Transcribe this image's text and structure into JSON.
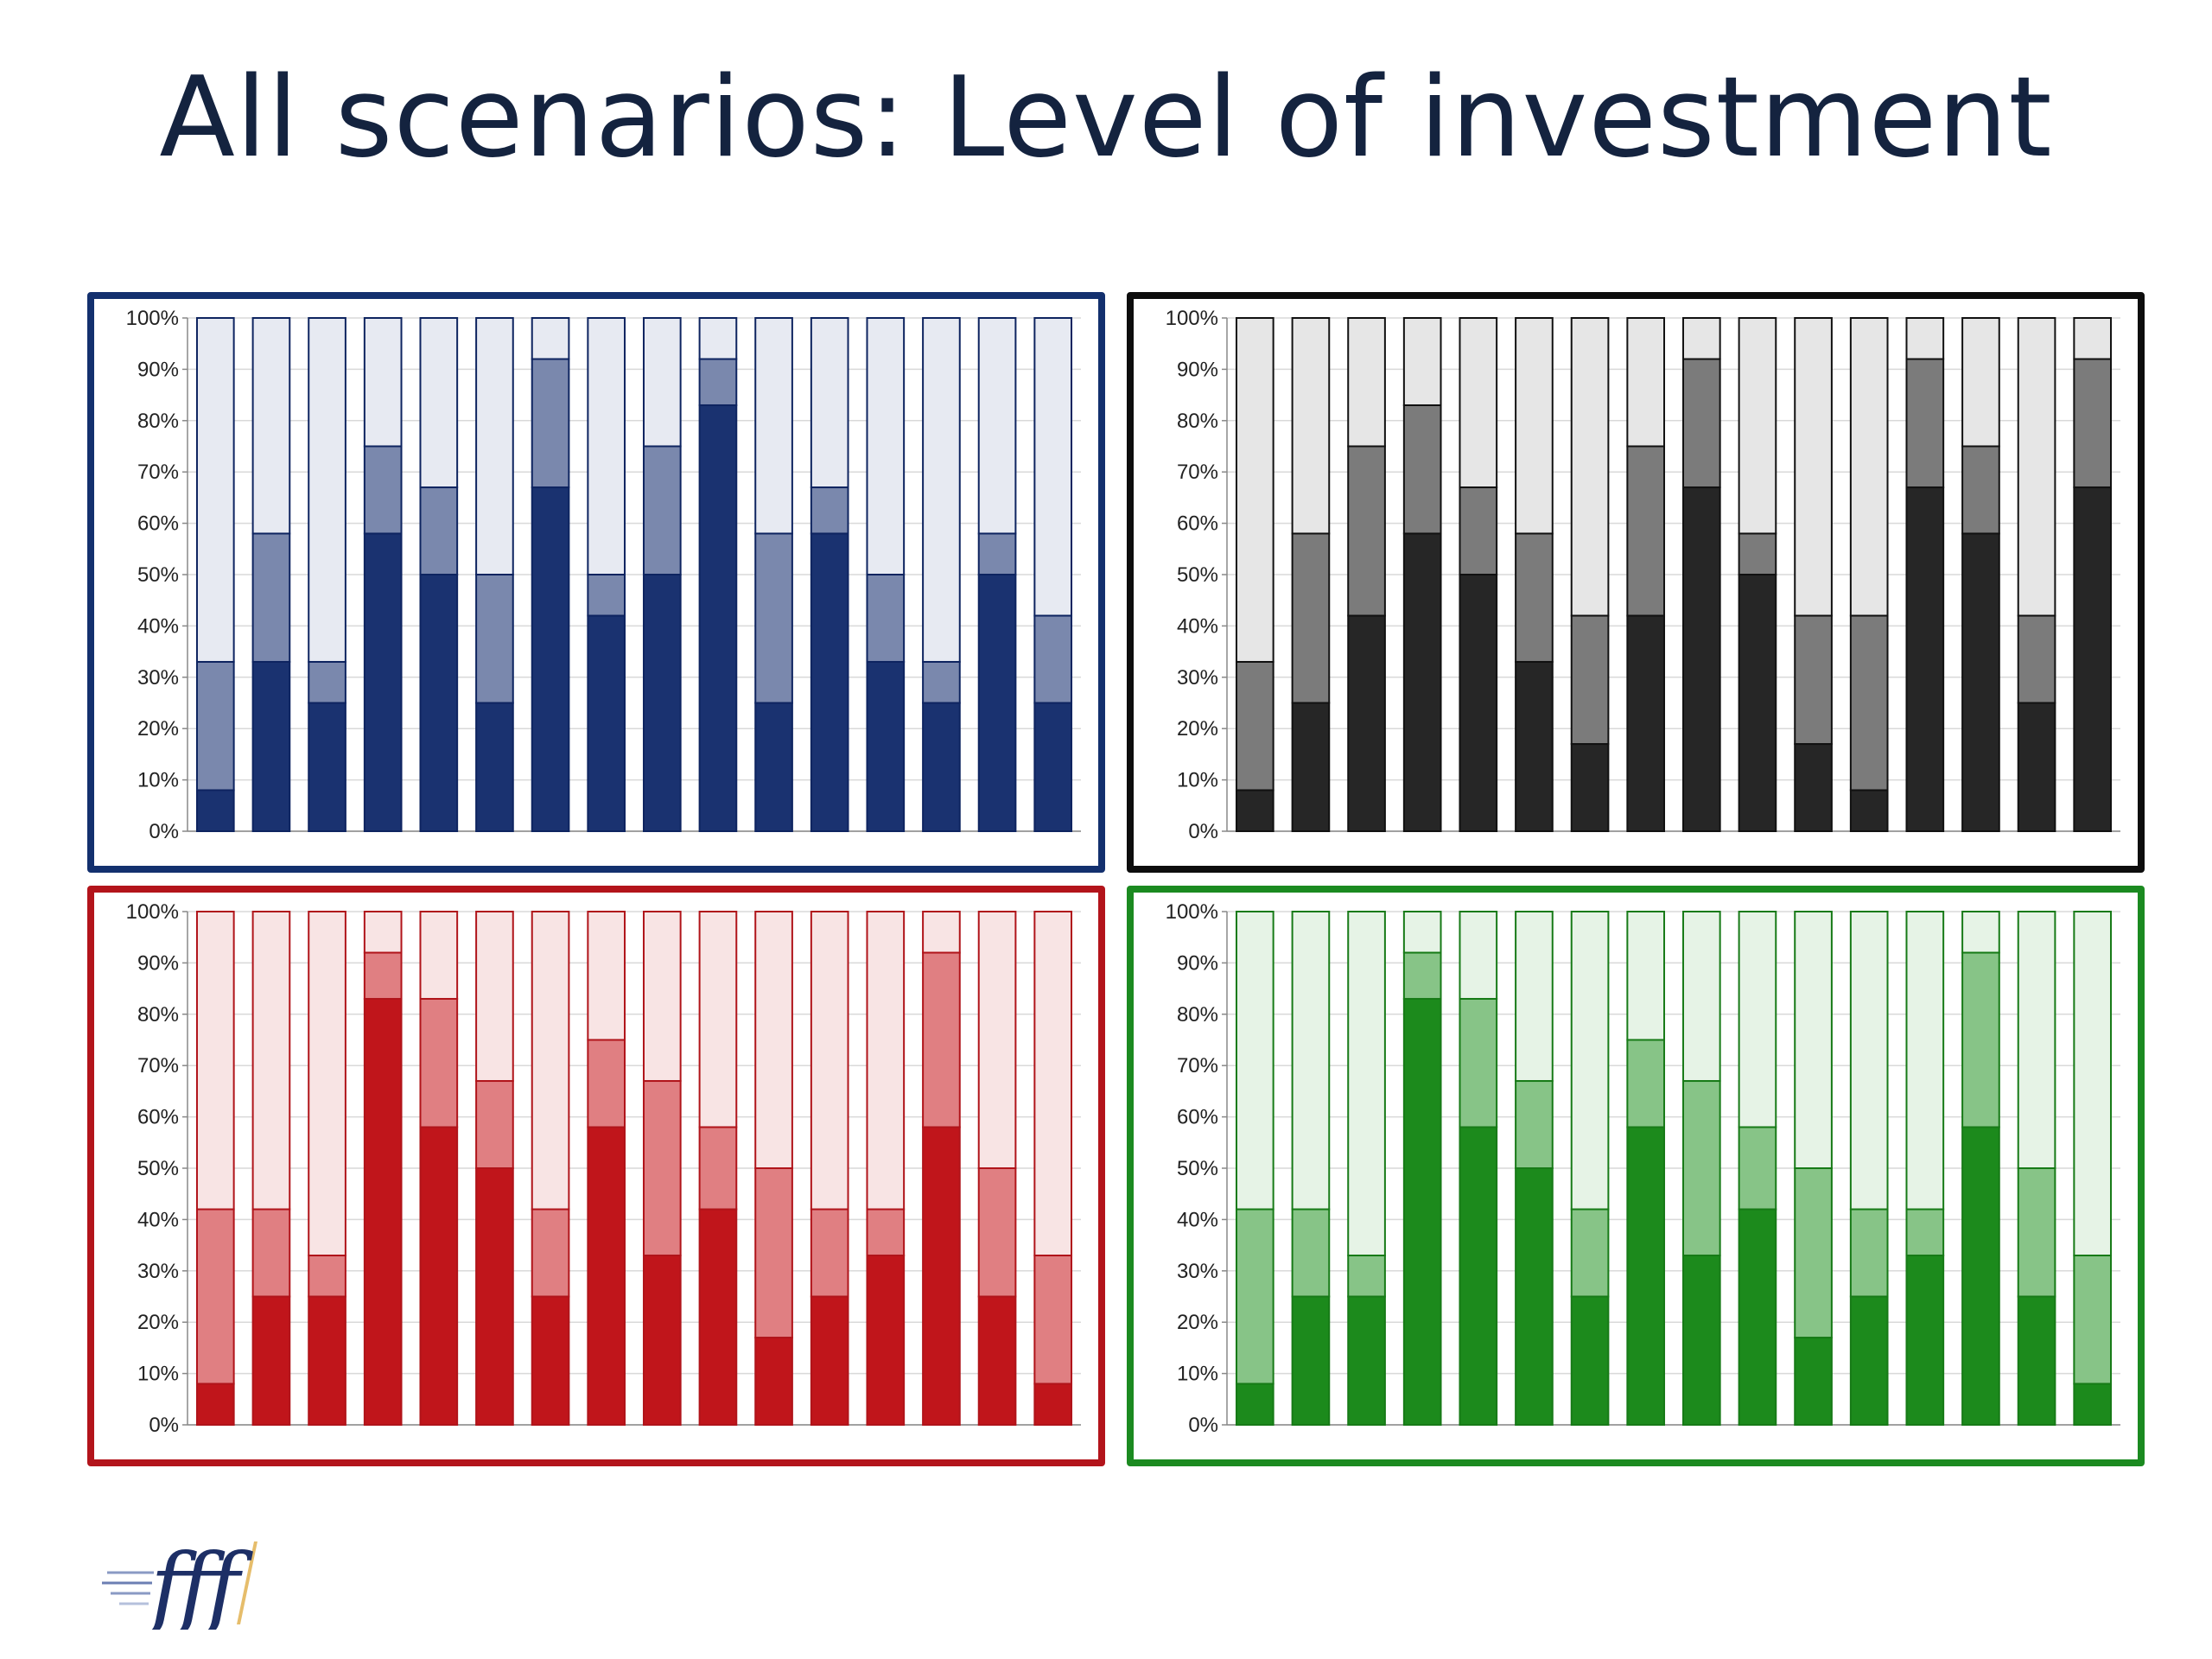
{
  "slide": {
    "title": "All scenarios: Level of investment",
    "logo_text": "fff"
  },
  "colors": {
    "blue": {
      "border": "#13306e",
      "dark": "#1a3270",
      "mid": "#7a88ad",
      "light": "#e7eaf2",
      "stroke": "#0e2460"
    },
    "black": {
      "border": "#0d0d0d",
      "dark": "#262626",
      "mid": "#7b7b7b",
      "light": "#e6e6e6",
      "stroke": "#111111"
    },
    "red": {
      "border": "#b3141b",
      "dark": "#c0151b",
      "mid": "#e07f82",
      "light": "#f8e4e4",
      "stroke": "#b0141a"
    },
    "green": {
      "border": "#1b8a20",
      "dark": "#1c8a1c",
      "mid": "#87c487",
      "light": "#e6f3e6",
      "stroke": "#177a17"
    }
  },
  "chart_data": [
    {
      "type": "bar",
      "stacked": true,
      "panel": "blue",
      "ylim": [
        0,
        100
      ],
      "yticks": [
        "0%",
        "10%",
        "20%",
        "30%",
        "40%",
        "50%",
        "60%",
        "70%",
        "80%",
        "90%",
        "100%"
      ],
      "grid": true,
      "series": [
        {
          "values": [
            8,
            33,
            25,
            58,
            50,
            25,
            67,
            42,
            50,
            83,
            25,
            58,
            33,
            25,
            50,
            25
          ]
        },
        {
          "values": [
            25,
            25,
            8,
            17,
            17,
            25,
            25,
            8,
            25,
            9,
            33,
            9,
            17,
            8,
            8,
            17
          ]
        },
        {
          "values": [
            67,
            42,
            67,
            25,
            33,
            50,
            8,
            50,
            25,
            8,
            42,
            33,
            50,
            67,
            42,
            58
          ]
        }
      ]
    },
    {
      "type": "bar",
      "stacked": true,
      "panel": "black",
      "ylim": [
        0,
        100
      ],
      "yticks": [
        "0%",
        "10%",
        "20%",
        "30%",
        "40%",
        "50%",
        "60%",
        "70%",
        "80%",
        "90%",
        "100%"
      ],
      "grid": true,
      "series": [
        {
          "values": [
            8,
            25,
            42,
            58,
            50,
            33,
            17,
            42,
            67,
            50,
            17,
            8,
            67,
            58,
            25,
            67
          ]
        },
        {
          "values": [
            25,
            33,
            33,
            25,
            17,
            25,
            25,
            33,
            25,
            8,
            25,
            34,
            25,
            17,
            17,
            25
          ]
        },
        {
          "values": [
            67,
            42,
            25,
            17,
            33,
            42,
            58,
            25,
            8,
            42,
            58,
            58,
            8,
            25,
            58,
            8
          ]
        }
      ]
    },
    {
      "type": "bar",
      "stacked": true,
      "panel": "red",
      "ylim": [
        0,
        100
      ],
      "yticks": [
        "0%",
        "10%",
        "20%",
        "30%",
        "40%",
        "50%",
        "60%",
        "70%",
        "80%",
        "90%",
        "100%"
      ],
      "grid": true,
      "series": [
        {
          "values": [
            8,
            25,
            25,
            83,
            58,
            50,
            25,
            58,
            33,
            42,
            17,
            25,
            33,
            58,
            25,
            8
          ]
        },
        {
          "values": [
            34,
            17,
            8,
            9,
            25,
            17,
            17,
            17,
            34,
            16,
            33,
            17,
            9,
            34,
            25,
            25
          ]
        },
        {
          "values": [
            58,
            58,
            67,
            8,
            17,
            33,
            58,
            25,
            33,
            42,
            50,
            58,
            58,
            8,
            50,
            67
          ]
        }
      ]
    },
    {
      "type": "bar",
      "stacked": true,
      "panel": "green",
      "ylim": [
        0,
        100
      ],
      "yticks": [
        "0%",
        "10%",
        "20%",
        "30%",
        "40%",
        "50%",
        "60%",
        "70%",
        "80%",
        "90%",
        "100%"
      ],
      "grid": true,
      "series": [
        {
          "values": [
            8,
            25,
            25,
            83,
            58,
            50,
            25,
            58,
            33,
            42,
            17,
            25,
            33,
            58,
            25,
            8
          ]
        },
        {
          "values": [
            34,
            17,
            8,
            9,
            25,
            17,
            17,
            17,
            34,
            16,
            33,
            17,
            9,
            34,
            25,
            25
          ]
        },
        {
          "values": [
            58,
            58,
            67,
            8,
            17,
            33,
            58,
            25,
            33,
            42,
            50,
            58,
            58,
            8,
            50,
            67
          ]
        }
      ]
    }
  ]
}
